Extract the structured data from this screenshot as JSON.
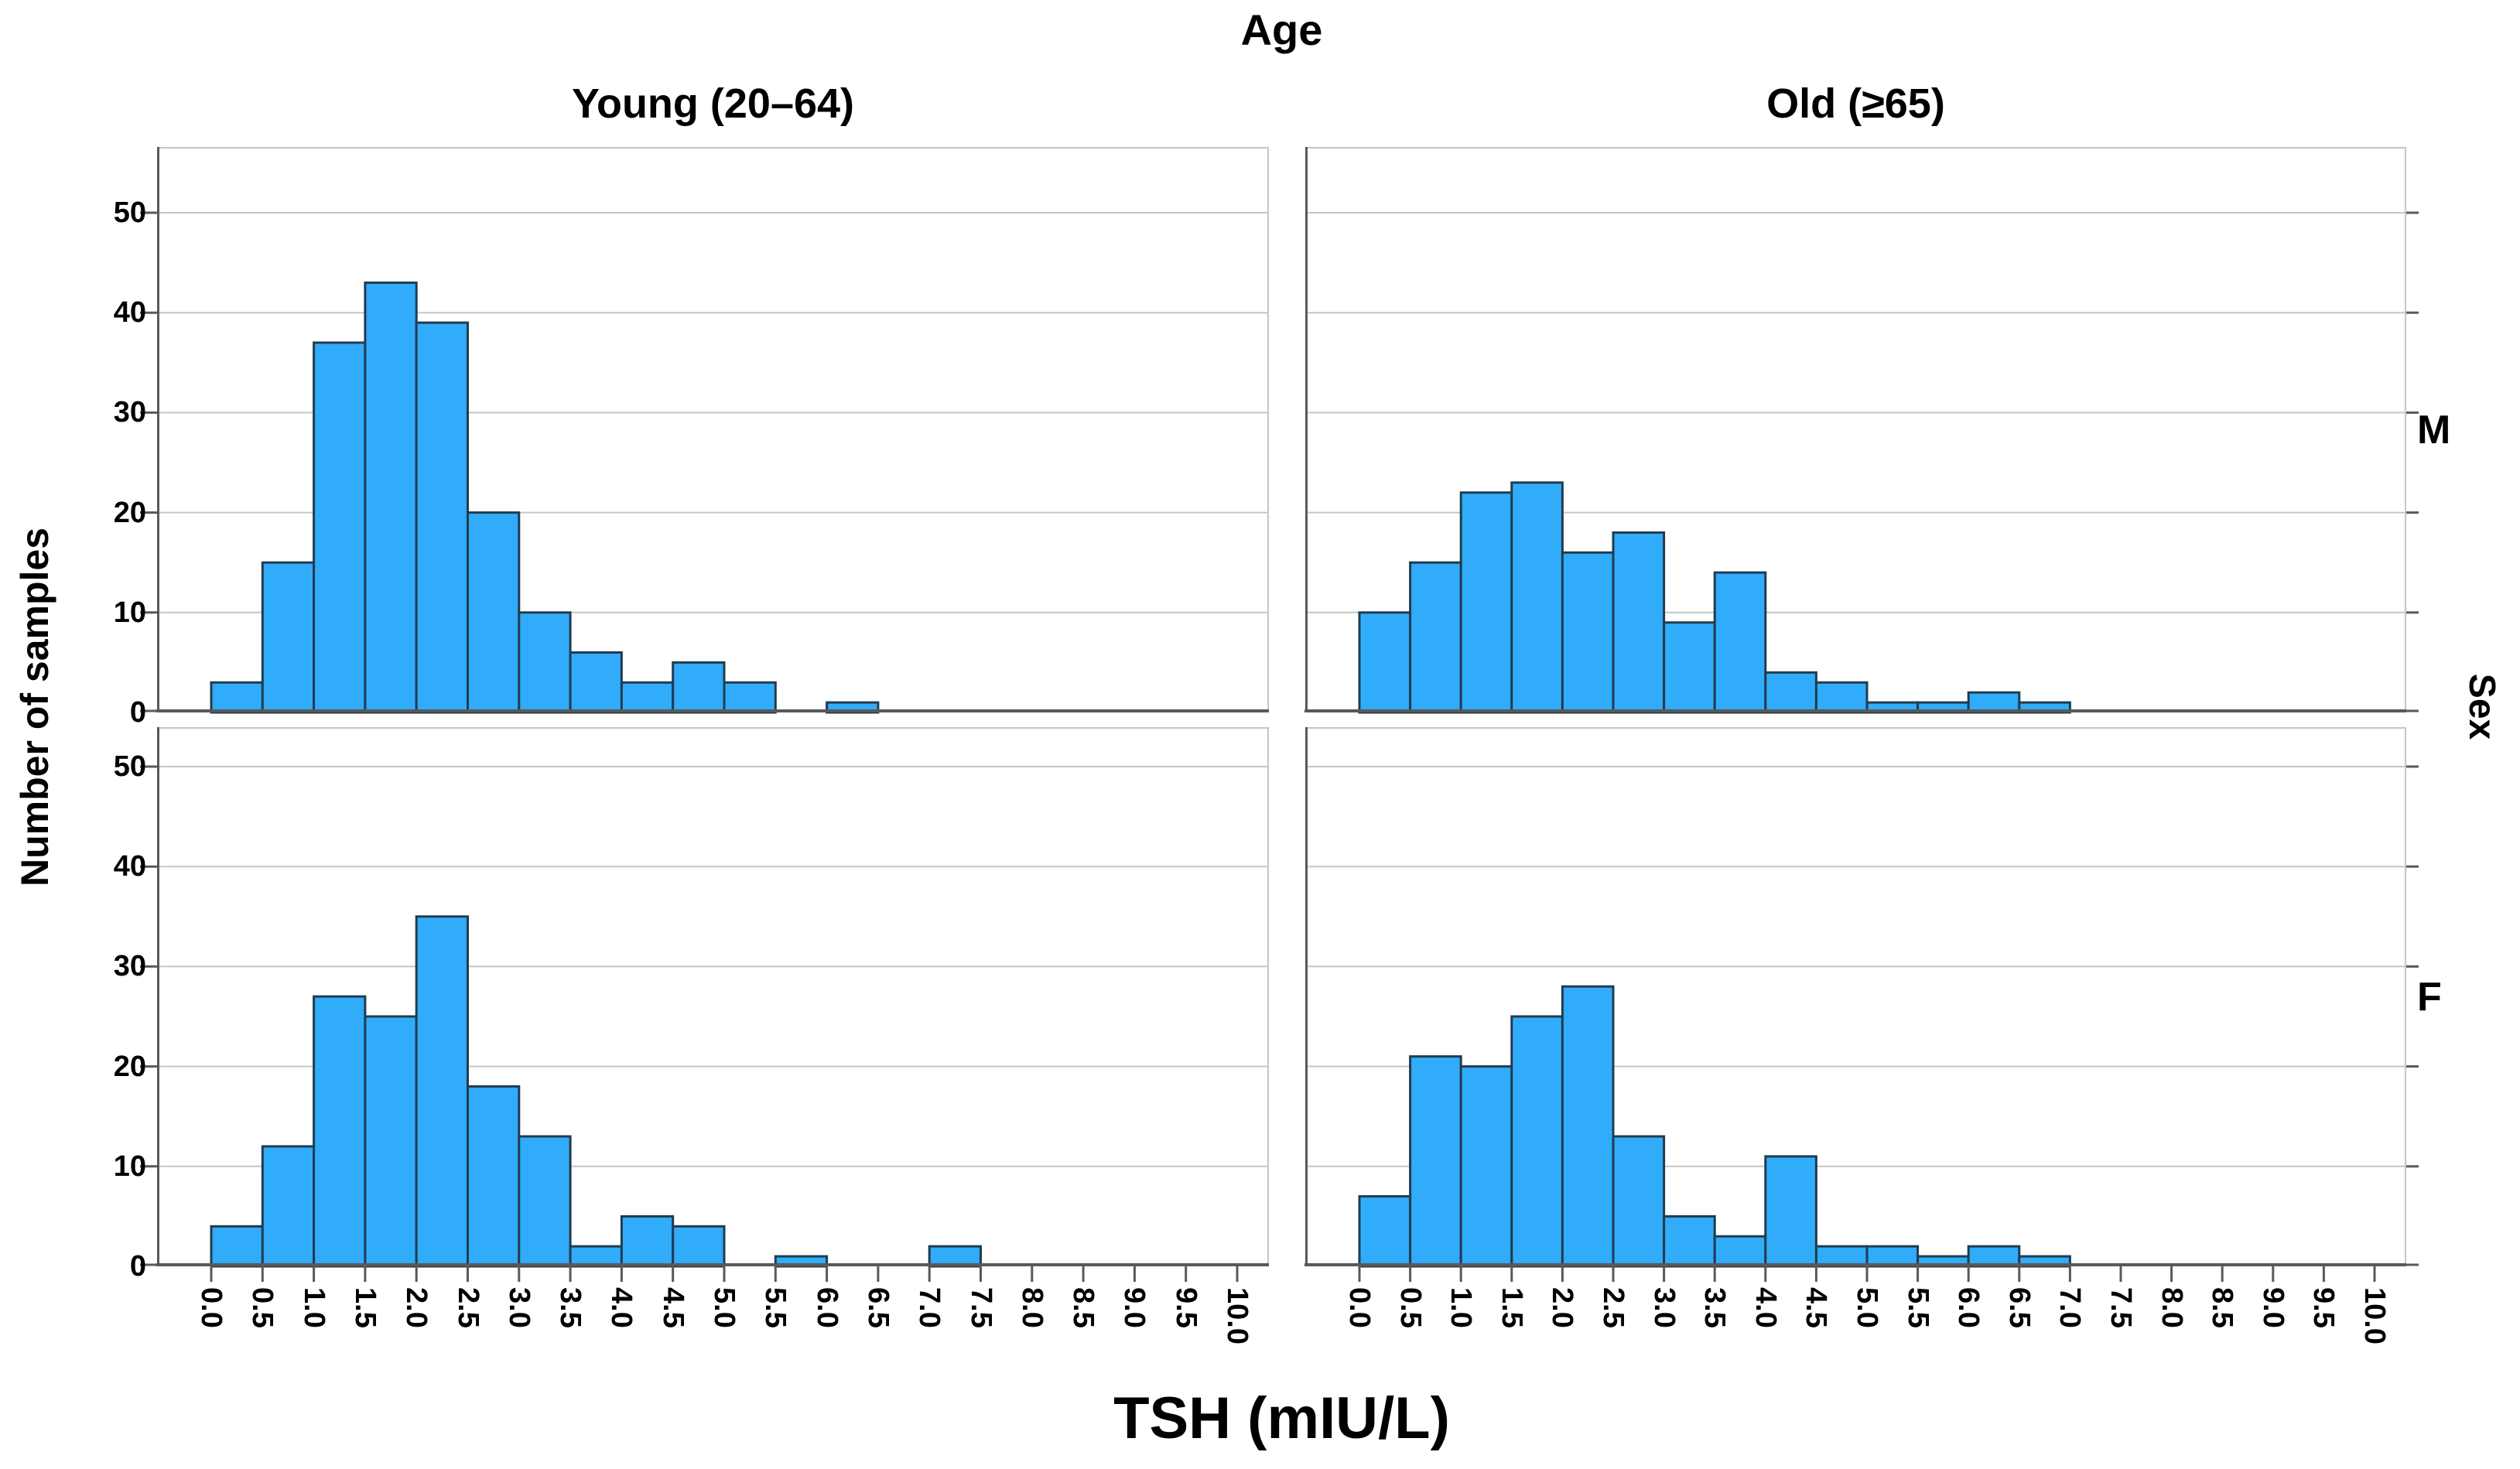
{
  "figure": {
    "title": "Age",
    "column_headers": [
      "Young (20–64)",
      "Old (≥65)"
    ],
    "row_headers": [
      "M",
      "F"
    ],
    "row_facet_title": "Sex",
    "y_axis_title": "Number of samples",
    "x_axis_title": "TSH (mIU/L)"
  },
  "chart_data": {
    "type": "bar",
    "subtype": "faceted_histogram",
    "title": "Age",
    "xlabel": "TSH (mIU/L)",
    "ylabel": "Number of samples",
    "facet_columns": [
      "Young (20–64)",
      "Old (≥65)"
    ],
    "facet_rows": [
      "M",
      "F"
    ],
    "facet_row_axis_title": "Sex",
    "bin_width": 0.5,
    "xlim": [
      0.0,
      10.0
    ],
    "ylim": [
      0,
      56
    ],
    "grid": "horizontal",
    "x_tick_labels": [
      "0.0",
      "0.5",
      "1.0",
      "1.5",
      "2.0",
      "2.5",
      "3.0",
      "3.5",
      "4.0",
      "4.5",
      "5.0",
      "5.5",
      "6.0",
      "6.5",
      "7.0",
      "7.5",
      "8.0",
      "8.5",
      "9.0",
      "9.5",
      "10.0"
    ],
    "y_ticks": [
      0,
      10,
      20,
      30,
      40,
      50
    ],
    "panels": [
      {
        "row": "M",
        "column": "Young (20–64)",
        "bin_counts": [
          3,
          15,
          37,
          43,
          39,
          20,
          10,
          6,
          3,
          5,
          3,
          0,
          1,
          0,
          0,
          0,
          0,
          0,
          0,
          0
        ]
      },
      {
        "row": "M",
        "column": "Old (≥65)",
        "bin_counts": [
          10,
          15,
          22,
          23,
          16,
          18,
          9,
          14,
          4,
          3,
          1,
          1,
          2,
          1,
          0,
          0,
          0,
          0,
          0,
          0
        ]
      },
      {
        "row": "F",
        "column": "Young (20–64)",
        "bin_counts": [
          4,
          12,
          27,
          25,
          35,
          18,
          13,
          2,
          5,
          4,
          0,
          1,
          0,
          0,
          2,
          0,
          0,
          0,
          0,
          0
        ]
      },
      {
        "row": "F",
        "column": "Old (≥65)",
        "bin_counts": [
          7,
          21,
          20,
          25,
          28,
          13,
          5,
          3,
          11,
          2,
          2,
          1,
          2,
          1,
          0,
          0,
          0,
          0,
          0,
          0
        ]
      }
    ],
    "colors": {
      "bar_fill": "#30ACFA",
      "bar_border": "#223B4E",
      "gridline": "#C6C6C6",
      "panel_border": "#C6C6C6",
      "axis_line": "#595959",
      "text": "#000000",
      "background": "#FFFFFF"
    }
  }
}
